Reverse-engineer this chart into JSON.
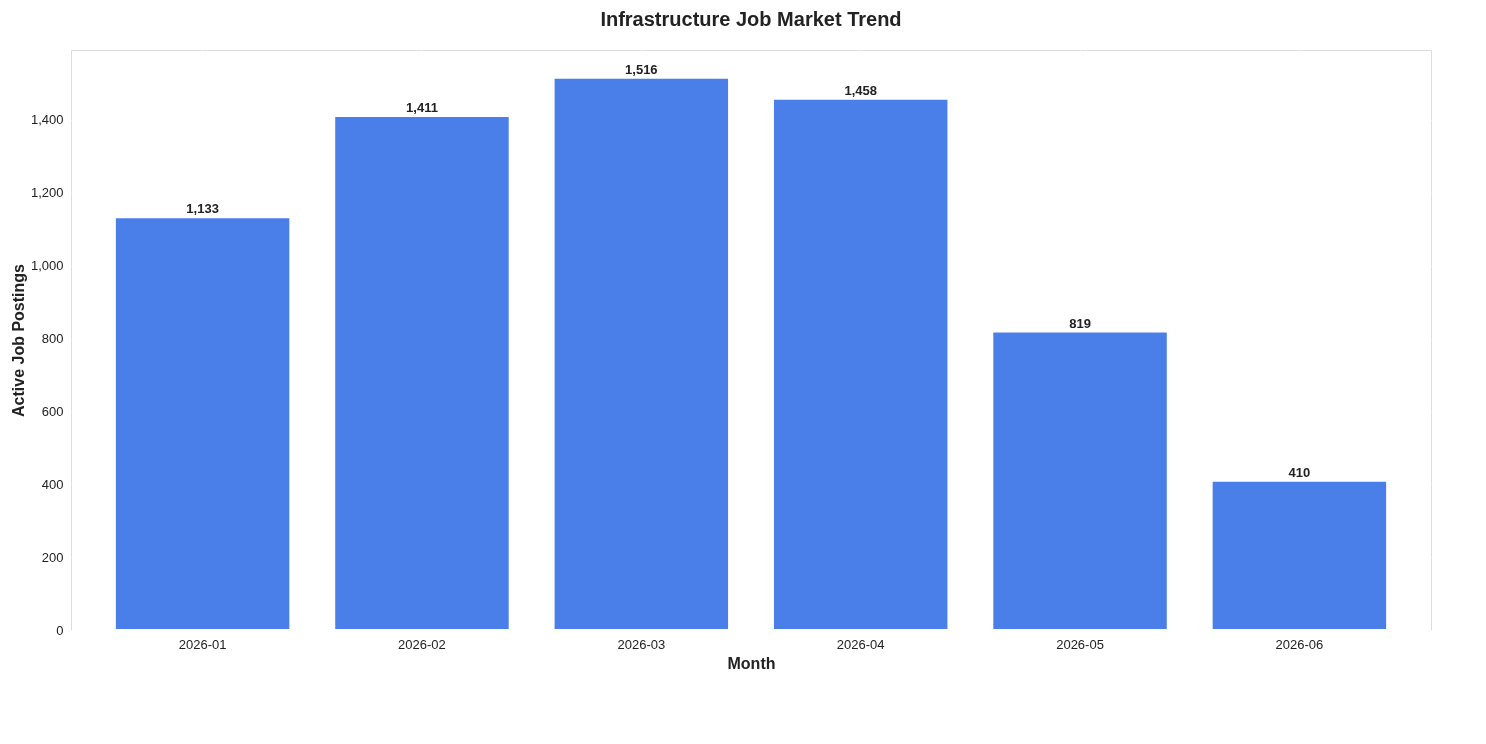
{
  "chart_data": {
    "type": "bar",
    "title": "Infrastructure Job Market Trend",
    "xlabel": "Month",
    "ylabel": "Active Job Postings",
    "categories": [
      "2026-01",
      "2026-02",
      "2026-03",
      "2026-04",
      "2026-05",
      "2026-06"
    ],
    "values": [
      1133,
      1411,
      1516,
      1458,
      819,
      410
    ],
    "color": "#4a7fea",
    "value_labels": [
      "1,133",
      "1,411",
      "1,516",
      "1,458",
      "819",
      "410"
    ],
    "ylim": [
      0,
      1592
    ],
    "yticks": [
      0,
      200,
      400,
      600,
      800,
      {
        "value": 1000,
        "label": "1,000"
      },
      {
        "value": 1200,
        "label": "1,200"
      },
      {
        "value": 1400,
        "label": "1,400"
      }
    ],
    "grid": true
  }
}
